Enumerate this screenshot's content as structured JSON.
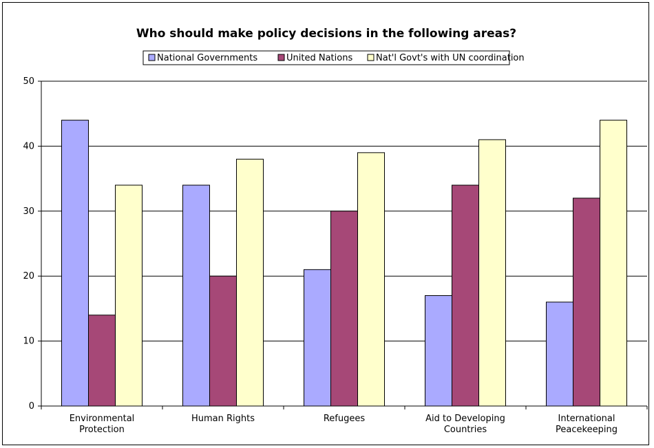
{
  "chart_data": {
    "type": "bar",
    "title": "Who should make policy decisions in the following areas?",
    "categories": [
      [
        "Environmental",
        "Protection"
      ],
      [
        "Human Rights"
      ],
      [
        "Refugees"
      ],
      [
        "Aid to Developing",
        "Countries"
      ],
      [
        "International",
        "Peacekeeping"
      ]
    ],
    "series": [
      {
        "name": "National Governments",
        "color": "#aaaaff",
        "values": [
          44,
          34,
          21,
          17,
          16
        ]
      },
      {
        "name": "United Nations",
        "color": "#a64877",
        "values": [
          14,
          20,
          30,
          34,
          32
        ]
      },
      {
        "name": "Nat'l Govt's with UN coordination",
        "color": "#ffffcc",
        "values": [
          34,
          38,
          39,
          41,
          44
        ]
      }
    ],
    "ylim": [
      0,
      50
    ],
    "yticks": [
      0,
      10,
      20,
      30,
      40,
      50
    ],
    "grid": true,
    "legend_position": "top"
  }
}
